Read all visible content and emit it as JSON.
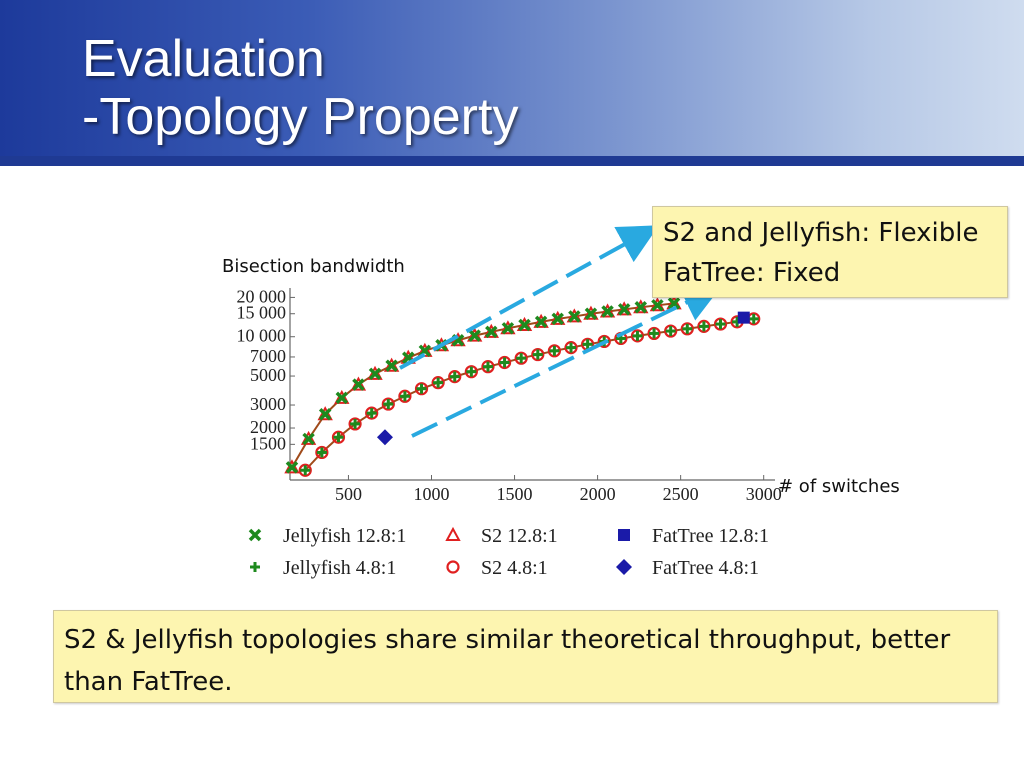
{
  "slide": {
    "title_line1": "Evaluation",
    "title_line2": "-Topology Property",
    "callout_top_line1": "S2 and Jellyfish: Flexible",
    "callout_top_line2": "FatTree: Fixed",
    "callout_bottom": "S2 & Jellyfish topologies share similar theoretical throughput, better than FatTree.",
    "colors": {
      "header_dark": "#1d3a9b",
      "callout_bg": "#fdf5b0",
      "arrow": "#29a9e0"
    }
  },
  "chart_data": {
    "type": "scatter",
    "xlabel": "# of switches",
    "ylabel": "Bisection bandwidth",
    "x_ticks": [
      500,
      1000,
      1500,
      2000,
      2500,
      3000
    ],
    "y_ticks": [
      1500,
      2000,
      3000,
      5000,
      7000,
      10000,
      15000,
      20000
    ],
    "y_tick_labels": [
      "1500",
      "2000",
      "3000",
      "5000",
      "7000",
      "10 000",
      "15 000",
      "20 000"
    ],
    "xlim": [
      100,
      3050
    ],
    "ylim": [
      800,
      22000
    ],
    "y_scale": "log",
    "series": [
      {
        "name": "Jellyfish 12.8:1",
        "marker": "x",
        "color": "#1e8a1e",
        "line": true,
        "x": [
          160,
          260,
          360,
          460,
          560,
          660,
          760,
          860,
          960,
          1060,
          1160,
          1260,
          1360,
          1460,
          1560,
          1660,
          1760,
          1860,
          1960,
          2060,
          2160,
          2260,
          2360,
          2460
        ],
        "y": [
          1000,
          1650,
          2550,
          3400,
          4300,
          5200,
          6000,
          6900,
          7800,
          8600,
          9400,
          10200,
          10900,
          11600,
          12300,
          13000,
          13700,
          14300,
          15000,
          15600,
          16200,
          16800,
          17400,
          18000
        ]
      },
      {
        "name": "S2 12.8:1",
        "marker": "triangle",
        "color": "#e02020",
        "line": true,
        "x": [
          160,
          260,
          360,
          460,
          560,
          660,
          760,
          860,
          960,
          1060,
          1160,
          1260,
          1360,
          1460,
          1560,
          1660,
          1760,
          1860,
          1960,
          2060,
          2160,
          2260,
          2360,
          2460
        ],
        "y": [
          1000,
          1650,
          2550,
          3400,
          4300,
          5200,
          6000,
          6900,
          7800,
          8600,
          9400,
          10200,
          10900,
          11600,
          12300,
          13000,
          13700,
          14300,
          15000,
          15600,
          16200,
          16800,
          17400,
          18000
        ]
      },
      {
        "name": "FatTree 12.8:1",
        "marker": "square",
        "color": "#1a1aa8",
        "line": false,
        "x": [
          2880
        ],
        "y": [
          14000
        ]
      },
      {
        "name": "Jellyfish 4.8:1",
        "marker": "plus",
        "color": "#1e8a1e",
        "line": true,
        "x": [
          240,
          340,
          440,
          540,
          640,
          740,
          840,
          940,
          1040,
          1140,
          1240,
          1340,
          1440,
          1540,
          1640,
          1740,
          1840,
          1940,
          2040,
          2140,
          2240,
          2340,
          2440,
          2540,
          2640,
          2740,
          2840,
          2940
        ],
        "y": [
          950,
          1300,
          1700,
          2150,
          2600,
          3050,
          3500,
          4000,
          4450,
          4950,
          5400,
          5900,
          6350,
          6850,
          7300,
          7800,
          8250,
          8750,
          9200,
          9700,
          10150,
          10600,
          11050,
          11500,
          12000,
          12500,
          13000,
          13700
        ]
      },
      {
        "name": "S2 4.8:1",
        "marker": "circle",
        "color": "#e02020",
        "line": true,
        "x": [
          240,
          340,
          440,
          540,
          640,
          740,
          840,
          940,
          1040,
          1140,
          1240,
          1340,
          1440,
          1540,
          1640,
          1740,
          1840,
          1940,
          2040,
          2140,
          2240,
          2340,
          2440,
          2540,
          2640,
          2740,
          2840,
          2940
        ],
        "y": [
          950,
          1300,
          1700,
          2150,
          2600,
          3050,
          3500,
          4000,
          4450,
          4950,
          5400,
          5900,
          6350,
          6850,
          7300,
          7800,
          8250,
          8750,
          9200,
          9700,
          10150,
          10600,
          11050,
          11500,
          12000,
          12500,
          13000,
          13700
        ]
      },
      {
        "name": "FatTree 4.8:1",
        "marker": "diamond",
        "color": "#1a1aa8",
        "line": false,
        "x": [
          720
        ],
        "y": [
          1700
        ]
      }
    ],
    "legend": [
      "Jellyfish 12.8:1",
      "S2 12.8:1",
      "FatTree 12.8:1",
      "Jellyfish 4.8:1",
      "S2 4.8:1",
      "FatTree 4.8:1"
    ],
    "legend_position": "bottom"
  }
}
